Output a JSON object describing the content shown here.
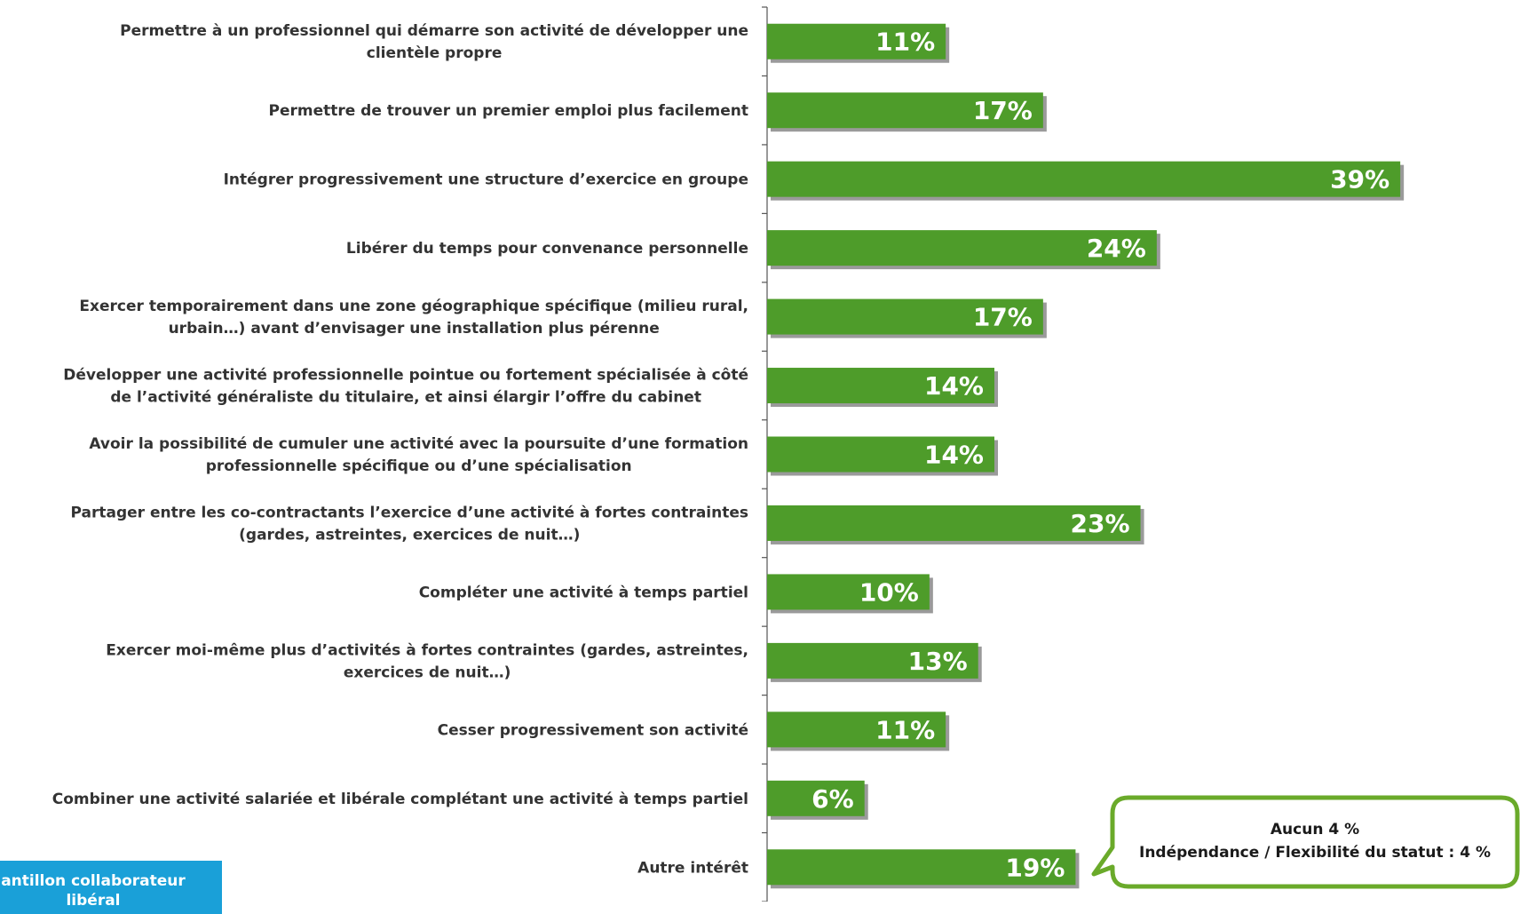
{
  "chart_data": {
    "type": "bar",
    "orientation": "horizontal",
    "categories": [
      [
        "Permettre à un professionnel qui démarre son activité de développer une",
        "clientèle propre"
      ],
      [
        "Permettre de trouver un premier emploi plus facilement"
      ],
      [
        "Intégrer progressivement une structure d’exercice en groupe"
      ],
      [
        "Libérer du temps pour convenance personnelle"
      ],
      [
        "Exercer temporairement dans une zone géographique spécifique (milieu rural,",
        "urbain…) avant d’envisager une installation plus pérenne"
      ],
      [
        "Développer une activité professionnelle pointue ou fortement spécialisée à côté",
        "de l’activité généraliste du titulaire, et ainsi élargir l’offre du cabinet"
      ],
      [
        "Avoir la possibilité de cumuler une activité avec la poursuite d’une formation",
        "professionnelle spécifique ou d’une spécialisation"
      ],
      [
        "Partager entre les co-contractants l’exercice d’une activité à fortes contraintes",
        "(gardes, astreintes, exercices de nuit…)"
      ],
      [
        "Compléter une activité à temps partiel"
      ],
      [
        "Exercer moi-même plus d’activités à fortes contraintes (gardes, astreintes,",
        "exercices de nuit…)"
      ],
      [
        "Cesser progressivement son activité"
      ],
      [
        "Combiner une activité salariée et libérale complétant une activité à temps partiel"
      ],
      [
        "Autre intérêt"
      ]
    ],
    "values": [
      11,
      17,
      39,
      24,
      17,
      14,
      14,
      23,
      10,
      13,
      11,
      6,
      19
    ],
    "value_labels": [
      "11%",
      "17%",
      "39%",
      "24%",
      "17%",
      "14%",
      "14%",
      "23%",
      "10%",
      "13%",
      "11%",
      "6%",
      "19%"
    ],
    "xlim": [
      0,
      42
    ],
    "bar_color": "#4e9c2a",
    "shadow_color": "#9a9a9a",
    "label_color": "#333333",
    "value_label_color": "#ffffff",
    "grid": false
  },
  "callout": {
    "lines": [
      "Aucun 4 %",
      "Indépendance / Flexibilité du statut : 4 %"
    ],
    "border_color": "#6aaa2a",
    "points_to": "Autre intérêt"
  },
  "sample_box": {
    "lines": [
      "antillon collaborateur",
      "libéral"
    ],
    "color": "#1aa0d8"
  },
  "title_fragment": ""
}
